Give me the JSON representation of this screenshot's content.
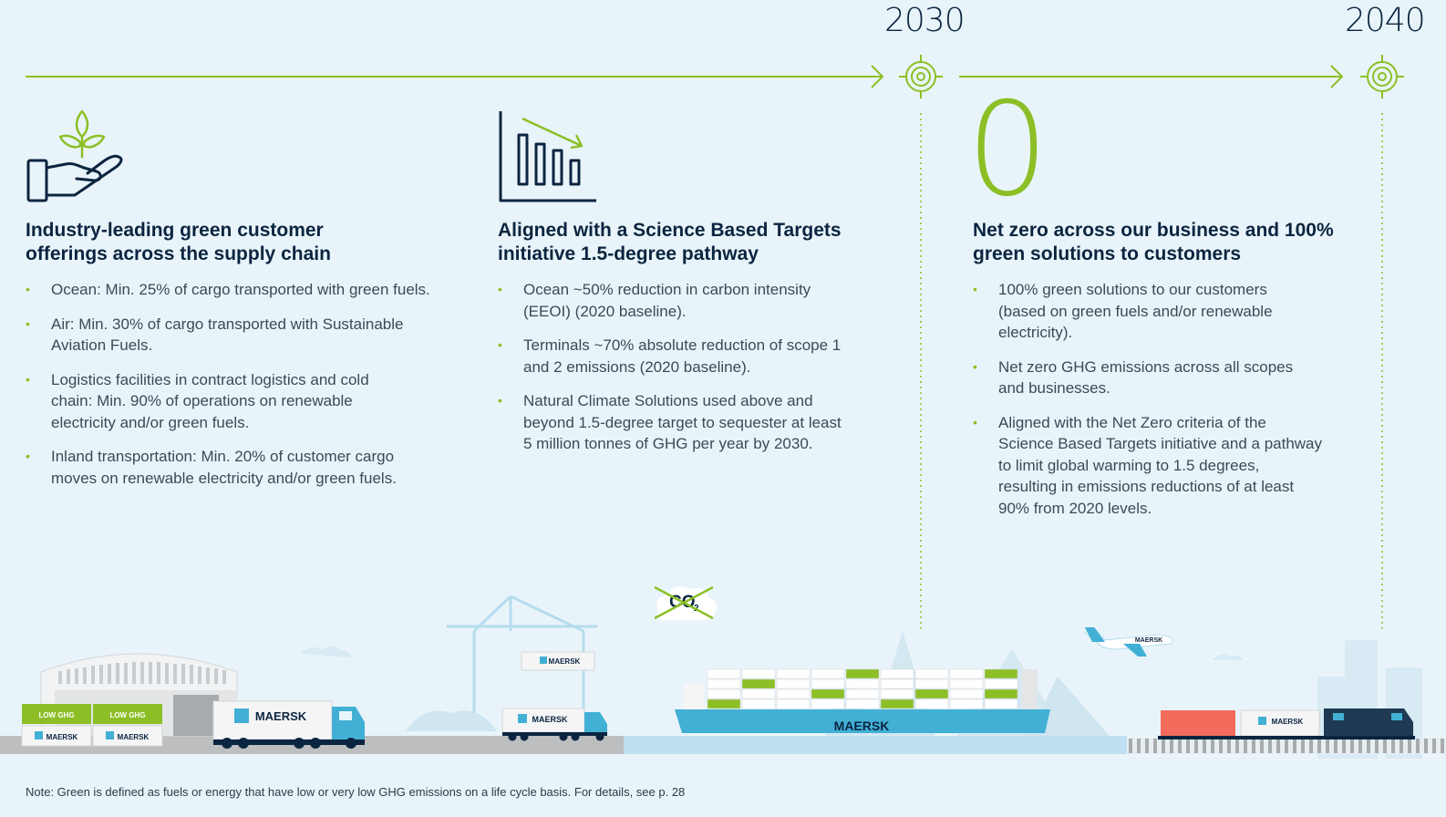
{
  "timeline": {
    "year_2030": "2030",
    "year_2040": "2040"
  },
  "columns": [
    {
      "heading_line1": "Industry-leading green customer",
      "heading_line2": "offerings across the supply chain",
      "bullets": [
        {
          "lines": [
            "Ocean: Min. 25% of cargo transported with green fuels."
          ]
        },
        {
          "lines": [
            "Air: Min. 30% of cargo transported with Sustainable",
            "Aviation Fuels."
          ]
        },
        {
          "lines": [
            "Logistics facilities in contract logistics and cold",
            "chain: Min. 90% of operations on renewable",
            "electricity and/or green fuels."
          ]
        },
        {
          "lines": [
            "Inland transportation: Min. 20% of customer cargo",
            "moves on renewable electricity and/or green fuels."
          ]
        }
      ]
    },
    {
      "heading_line1": "Aligned with a Science Based Targets",
      "heading_line2": "initiative 1.5-degree pathway",
      "bullets": [
        {
          "lines": [
            "Ocean ~50% reduction in carbon intensity",
            "(EEOI) (2020 baseline)."
          ]
        },
        {
          "lines": [
            "Terminals ~70% absolute reduction of scope 1",
            "and 2 emissions (2020 baseline)."
          ]
        },
        {
          "lines": [
            "Natural Climate Solutions used above and",
            "beyond 1.5-degree target to sequester at least",
            "5 million tonnes of GHG per year by 2030."
          ]
        }
      ]
    },
    {
      "heading_line1": "Net zero across our business and 100%",
      "heading_line2": "green solutions to customers",
      "bullets": [
        {
          "lines": [
            "100% green solutions to our customers",
            "(based on green fuels and/or renewable",
            "electricity)."
          ]
        },
        {
          "lines": [
            "Net zero GHG emissions across all scopes",
            "and businesses."
          ]
        },
        {
          "lines": [
            "Aligned with the Net Zero criteria of the",
            "Science Based Targets initiative and a pathway",
            "to limit global warming to 1.5 degrees,",
            "resulting in emissions reductions of at least",
            "90% from 2020 levels."
          ]
        }
      ]
    }
  ],
  "big_number": "0",
  "illustration": {
    "brand": "MAERSK",
    "low_ghg": "LOW GHG",
    "co2": "CO",
    "co2_sub": "2"
  },
  "note": "Note: Green is defined as fuels or energy that have low or very low GHG emissions on a life cycle basis. For details, see p. 28",
  "colors": {
    "accent_green": "#8cbf26",
    "navy": "#0b2540",
    "light_blue": "#42b0d5",
    "background": "#e9f4fa"
  },
  "icons": [
    "hand-plant-icon",
    "declining-bar-chart-icon",
    "target-icon"
  ]
}
